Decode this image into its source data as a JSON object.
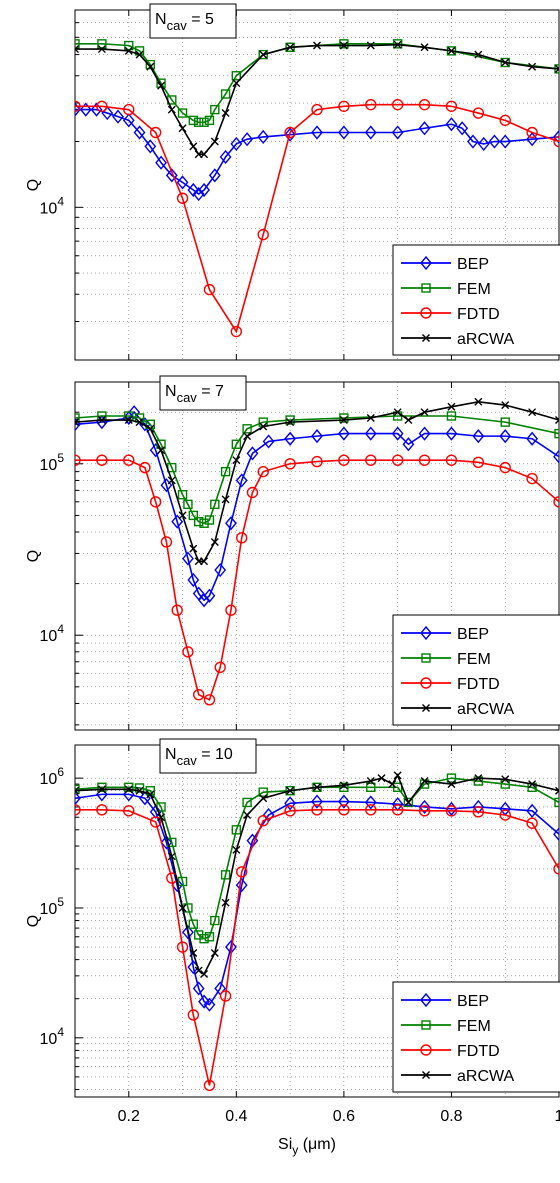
{
  "figure": {
    "xlabel": "Si",
    "xlabel_sub": "y",
    "xlabel_unit": " (μm)",
    "x_tick_labels": [
      "0.2",
      "0.4",
      "0.6",
      "0.8",
      "1"
    ]
  },
  "chart_data": [
    {
      "type": "line",
      "title": "",
      "annotation": {
        "base": "N",
        "sub": "cav",
        "rest": " = 5"
      },
      "ylabel": "Q",
      "xlabel": "",
      "xlim": [
        0.1,
        1.0
      ],
      "ylim": [
        2000,
        80000
      ],
      "yscale": "log",
      "grid": true,
      "legend_position": "lower-right",
      "ytick_labels": [
        {
          "value": 10000,
          "base": "10",
          "exp": "4"
        }
      ],
      "series": [
        {
          "name": "BEP",
          "color": "#0000ff",
          "marker": "diamond",
          "x": [
            0.1,
            0.12,
            0.14,
            0.16,
            0.18,
            0.2,
            0.22,
            0.24,
            0.26,
            0.28,
            0.3,
            0.32,
            0.33,
            0.34,
            0.36,
            0.38,
            0.4,
            0.42,
            0.45,
            0.5,
            0.55,
            0.6,
            0.65,
            0.7,
            0.75,
            0.8,
            0.82,
            0.84,
            0.86,
            0.88,
            0.9,
            0.95,
            1.0
          ],
          "y": [
            28000,
            28000,
            28000,
            27000,
            26000,
            25000,
            22000,
            19000,
            16000,
            14000,
            13000,
            12000,
            11500,
            12000,
            14000,
            17000,
            19500,
            20500,
            21000,
            21500,
            22000,
            22000,
            22000,
            22000,
            23000,
            24000,
            23000,
            20000,
            19500,
            20000,
            20000,
            20500,
            21000
          ]
        },
        {
          "name": "FEM",
          "color": "#008000",
          "marker": "square",
          "x": [
            0.1,
            0.15,
            0.2,
            0.22,
            0.24,
            0.26,
            0.28,
            0.3,
            0.32,
            0.33,
            0.34,
            0.35,
            0.36,
            0.38,
            0.4,
            0.45,
            0.5,
            0.6,
            0.7,
            0.8,
            0.9,
            1.0
          ],
          "y": [
            56000,
            56000,
            55000,
            52000,
            45000,
            37000,
            31000,
            27000,
            25000,
            24500,
            24500,
            25000,
            28000,
            33000,
            40000,
            50000,
            54000,
            56000,
            56000,
            52000,
            46000,
            43000
          ]
        },
        {
          "name": "FDTD",
          "color": "#ff0000",
          "marker": "circle",
          "x": [
            0.1,
            0.15,
            0.2,
            0.25,
            0.3,
            0.35,
            0.4,
            0.45,
            0.5,
            0.55,
            0.6,
            0.65,
            0.7,
            0.75,
            0.8,
            0.85,
            0.9,
            0.95,
            1.0
          ],
          "y": [
            29000,
            29000,
            28000,
            22000,
            11000,
            4200,
            2700,
            7500,
            22000,
            28000,
            29000,
            29500,
            29500,
            29500,
            29000,
            27000,
            25000,
            22000,
            20000
          ]
        },
        {
          "name": "aRCWA",
          "color": "#000000",
          "marker": "x",
          "x": [
            0.1,
            0.15,
            0.2,
            0.22,
            0.24,
            0.26,
            0.28,
            0.3,
            0.32,
            0.33,
            0.34,
            0.36,
            0.38,
            0.4,
            0.45,
            0.5,
            0.55,
            0.6,
            0.65,
            0.7,
            0.75,
            0.8,
            0.85,
            0.9,
            0.95,
            1.0
          ],
          "y": [
            53000,
            53000,
            52000,
            50000,
            44000,
            36000,
            28000,
            23000,
            19000,
            17500,
            17500,
            20000,
            27000,
            37000,
            50000,
            54000,
            55000,
            55000,
            55000,
            55500,
            54000,
            52000,
            50000,
            46000,
            44000,
            43000
          ]
        }
      ]
    },
    {
      "type": "line",
      "title": "",
      "annotation": {
        "base": "N",
        "sub": "cav",
        "rest": " = 7"
      },
      "ylabel": "Q",
      "xlabel": "",
      "xlim": [
        0.1,
        1.0
      ],
      "ylim": [
        2800,
        300000
      ],
      "yscale": "log",
      "grid": true,
      "legend_position": "lower-right",
      "ytick_labels": [
        {
          "value": 10000,
          "base": "10",
          "exp": "4"
        },
        {
          "value": 100000,
          "base": "10",
          "exp": "5"
        }
      ],
      "series": [
        {
          "name": "BEP",
          "color": "#0000ff",
          "marker": "diamond",
          "x": [
            0.1,
            0.15,
            0.2,
            0.21,
            0.23,
            0.25,
            0.27,
            0.29,
            0.31,
            0.32,
            0.33,
            0.34,
            0.35,
            0.37,
            0.39,
            0.41,
            0.43,
            0.46,
            0.5,
            0.55,
            0.6,
            0.65,
            0.7,
            0.72,
            0.75,
            0.8,
            0.85,
            0.9,
            0.95,
            1.0
          ],
          "y": [
            170000,
            175000,
            185000,
            200000,
            170000,
            120000,
            75000,
            46000,
            28000,
            21000,
            17500,
            16000,
            17000,
            24000,
            45000,
            80000,
            115000,
            135000,
            140000,
            145000,
            150000,
            150000,
            150000,
            130000,
            150000,
            150000,
            145000,
            145000,
            140000,
            110000
          ]
        },
        {
          "name": "FEM",
          "color": "#008000",
          "marker": "square",
          "x": [
            0.1,
            0.15,
            0.2,
            0.22,
            0.24,
            0.26,
            0.28,
            0.3,
            0.31,
            0.32,
            0.33,
            0.34,
            0.35,
            0.36,
            0.38,
            0.4,
            0.42,
            0.45,
            0.5,
            0.6,
            0.7,
            0.8,
            0.9,
            1.0
          ],
          "y": [
            185000,
            190000,
            190000,
            185000,
            170000,
            130000,
            95000,
            66000,
            58000,
            50000,
            46000,
            45000,
            47000,
            58000,
            90000,
            130000,
            160000,
            175000,
            180000,
            185000,
            190000,
            190000,
            175000,
            150000
          ]
        },
        {
          "name": "FDTD",
          "color": "#ff0000",
          "marker": "circle",
          "x": [
            0.1,
            0.15,
            0.2,
            0.23,
            0.25,
            0.27,
            0.29,
            0.31,
            0.33,
            0.35,
            0.37,
            0.39,
            0.41,
            0.43,
            0.45,
            0.5,
            0.55,
            0.6,
            0.65,
            0.7,
            0.75,
            0.8,
            0.85,
            0.9,
            0.95,
            1.0
          ],
          "y": [
            105000,
            105000,
            105000,
            95000,
            60000,
            35000,
            14000,
            8000,
            4500,
            4200,
            6500,
            14000,
            37000,
            68000,
            90000,
            100000,
            103000,
            105000,
            105000,
            105000,
            105000,
            105000,
            102000,
            95000,
            82000,
            60000
          ]
        },
        {
          "name": "aRCWA",
          "color": "#000000",
          "marker": "x",
          "x": [
            0.1,
            0.15,
            0.2,
            0.22,
            0.24,
            0.26,
            0.28,
            0.3,
            0.32,
            0.33,
            0.34,
            0.36,
            0.38,
            0.4,
            0.42,
            0.45,
            0.5,
            0.6,
            0.65,
            0.7,
            0.72,
            0.75,
            0.8,
            0.85,
            0.9,
            0.95,
            1.0
          ],
          "y": [
            175000,
            180000,
            180000,
            175000,
            160000,
            120000,
            80000,
            50000,
            32000,
            27000,
            27000,
            35000,
            62000,
            105000,
            145000,
            165000,
            175000,
            180000,
            185000,
            200000,
            180000,
            200000,
            215000,
            230000,
            220000,
            200000,
            180000
          ]
        }
      ]
    },
    {
      "type": "line",
      "title": "",
      "annotation": {
        "base": "N",
        "sub": "cav",
        "rest": " = 10"
      },
      "ylabel": "Q",
      "xlabel": "Si_y (μm)",
      "xlim": [
        0.1,
        1.0
      ],
      "ylim": [
        3500,
        1800000
      ],
      "yscale": "log",
      "grid": true,
      "legend_position": "lower-right",
      "ytick_labels": [
        {
          "value": 10000,
          "base": "10",
          "exp": "4"
        },
        {
          "value": 100000,
          "base": "10",
          "exp": "5"
        },
        {
          "value": 1000000,
          "base": "10",
          "exp": "6"
        }
      ],
      "series": [
        {
          "name": "BEP",
          "color": "#0000ff",
          "marker": "diamond",
          "x": [
            0.1,
            0.15,
            0.2,
            0.23,
            0.25,
            0.27,
            0.29,
            0.31,
            0.32,
            0.33,
            0.34,
            0.35,
            0.37,
            0.39,
            0.41,
            0.43,
            0.46,
            0.5,
            0.55,
            0.6,
            0.65,
            0.7,
            0.75,
            0.8,
            0.85,
            0.9,
            0.95,
            1.0
          ],
          "y": [
            700000,
            750000,
            750000,
            700000,
            550000,
            320000,
            150000,
            65000,
            35000,
            24000,
            19000,
            18000,
            24000,
            50000,
            150000,
            330000,
            520000,
            640000,
            660000,
            660000,
            650000,
            630000,
            600000,
            580000,
            600000,
            580000,
            560000,
            370000
          ]
        },
        {
          "name": "FEM",
          "color": "#008000",
          "marker": "square",
          "x": [
            0.1,
            0.15,
            0.2,
            0.22,
            0.24,
            0.26,
            0.28,
            0.3,
            0.31,
            0.32,
            0.33,
            0.34,
            0.35,
            0.36,
            0.38,
            0.4,
            0.42,
            0.45,
            0.5,
            0.55,
            0.6,
            0.65,
            0.7,
            0.72,
            0.75,
            0.8,
            0.85,
            0.9,
            0.95,
            1.0
          ],
          "y": [
            820000,
            850000,
            850000,
            840000,
            800000,
            600000,
            320000,
            160000,
            100000,
            75000,
            62000,
            58000,
            60000,
            80000,
            180000,
            400000,
            650000,
            780000,
            800000,
            850000,
            850000,
            850000,
            850000,
            650000,
            900000,
            1000000,
            950000,
            900000,
            850000,
            650000
          ]
        },
        {
          "name": "FDTD",
          "color": "#ff0000",
          "marker": "circle",
          "x": [
            0.1,
            0.15,
            0.2,
            0.25,
            0.28,
            0.3,
            0.32,
            0.35,
            0.38,
            0.41,
            0.45,
            0.5,
            0.55,
            0.6,
            0.65,
            0.7,
            0.75,
            0.8,
            0.85,
            0.9,
            0.95,
            1.0
          ],
          "y": [
            570000,
            570000,
            560000,
            460000,
            170000,
            50000,
            15000,
            4300,
            21000,
            190000,
            470000,
            560000,
            570000,
            570000,
            570000,
            570000,
            560000,
            560000,
            550000,
            520000,
            450000,
            200000
          ]
        },
        {
          "name": "aRCWA",
          "color": "#000000",
          "marker": "x",
          "x": [
            0.1,
            0.15,
            0.2,
            0.22,
            0.24,
            0.26,
            0.28,
            0.3,
            0.32,
            0.33,
            0.34,
            0.36,
            0.38,
            0.4,
            0.42,
            0.45,
            0.5,
            0.55,
            0.6,
            0.65,
            0.67,
            0.69,
            0.7,
            0.72,
            0.75,
            0.8,
            0.85,
            0.9,
            0.95,
            1.0
          ],
          "y": [
            800000,
            820000,
            820000,
            800000,
            750000,
            500000,
            250000,
            100000,
            45000,
            33000,
            31000,
            45000,
            110000,
            280000,
            520000,
            700000,
            800000,
            850000,
            880000,
            950000,
            1000000,
            900000,
            1050000,
            650000,
            950000,
            900000,
            1000000,
            980000,
            900000,
            800000
          ]
        }
      ]
    }
  ]
}
